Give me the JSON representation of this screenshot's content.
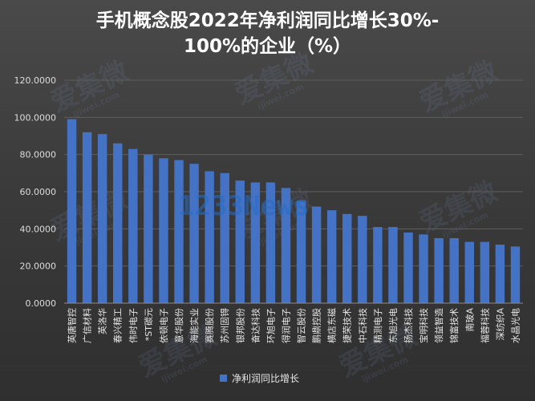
{
  "title": {
    "line1": "手机概念股2022年净利润同比增长30%-",
    "line2": "100%的企业（%）"
  },
  "overlay_text": "1233News",
  "watermark": {
    "text": "爱集微",
    "sub": "ijiwei.com"
  },
  "colors": {
    "bar": "#4472c4",
    "grid": "#5e5e5e",
    "axis": "#8a8a8a"
  },
  "chart_data": {
    "type": "bar",
    "title": "手机概念股2022年净利润同比增长30%-100%的企业（%）",
    "xlabel": "",
    "ylabel": "",
    "ylim": [
      0,
      120
    ],
    "yticks": [
      "0.0000",
      "20.0000",
      "40.0000",
      "60.0000",
      "80.0000",
      "100.0000",
      "120.0000"
    ],
    "grid": true,
    "legend_position": "bottom",
    "categories": [
      "英唐智控",
      "广信材料",
      "英洛华",
      "春兴精工",
      "伟时电子",
      "*ST碳元",
      "依顿电子",
      "意华股份",
      "海能实业",
      "赛腾股份",
      "苏州固锝",
      "银邦股份",
      "奋达科技",
      "环旭电子",
      "得润电子",
      "智云股份",
      "鹏鼎控股",
      "横店东磁",
      "捷荣技术",
      "中石科技",
      "精测电子",
      "东旭光电",
      "扬杰科技",
      "宝明科技",
      "领益智造",
      "锦富技术",
      "南玻A",
      "福蓉科技",
      "深纺织A",
      "水晶光电"
    ],
    "series": [
      {
        "name": "净利润同比增长",
        "values": [
          99.0,
          92.0,
          91.0,
          86.0,
          83.0,
          80.0,
          78.0,
          77.0,
          75.0,
          71.0,
          70.0,
          66.0,
          65.0,
          65.0,
          62.0,
          55.0,
          52.0,
          50.0,
          48.0,
          47.0,
          41.0,
          41.0,
          38.0,
          37.0,
          35.0,
          35.0,
          33.0,
          33.0,
          31.5,
          30.5
        ]
      }
    ]
  }
}
